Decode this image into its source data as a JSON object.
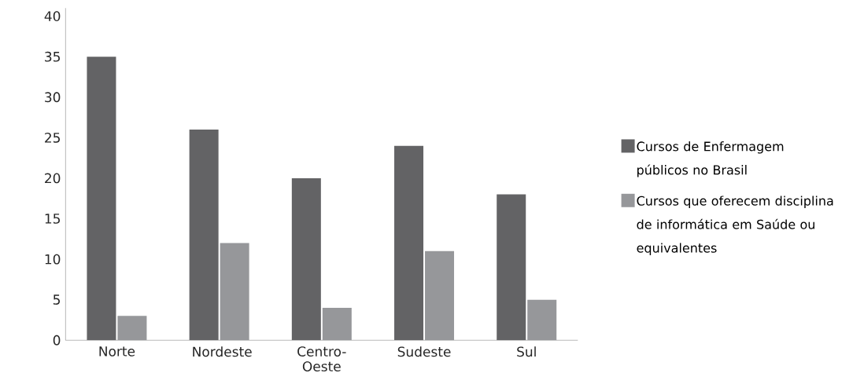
{
  "chart_data": {
    "type": "bar",
    "categories": [
      "Norte",
      "Nordeste",
      "Centro-Oeste",
      "Sudeste",
      "Sul"
    ],
    "series": [
      {
        "name": "Cursos de Enfermagem públicos no Brasil",
        "color": "#636365",
        "values": [
          35,
          26,
          20,
          24,
          18
        ]
      },
      {
        "name": "Cursos que oferecem disciplina de informática em Saúde ou equivalentes",
        "color": "#96979a",
        "values": [
          3,
          12,
          4,
          11,
          5
        ]
      }
    ],
    "ylim": [
      0,
      41
    ],
    "yticks": [
      0,
      5,
      10,
      15,
      20,
      25,
      30,
      35,
      40
    ],
    "legend": "right"
  }
}
